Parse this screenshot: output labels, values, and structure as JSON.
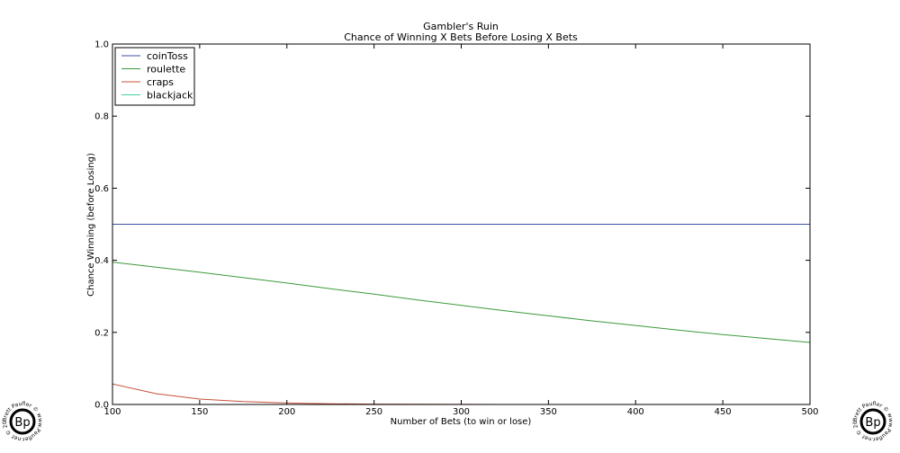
{
  "chart_data": {
    "type": "line",
    "title": "Gambler's Ruin",
    "subtitle": "Chance of Winning X Bets Before Losing X Bets",
    "x_label": "Number of Bets (to win or lose)",
    "y_label": "Chance Winning (before Losing)",
    "x": [
      100,
      125,
      150,
      175,
      200,
      225,
      250,
      275,
      300,
      325,
      350,
      375,
      400,
      425,
      450,
      475,
      500
    ],
    "series": [
      {
        "name": "coinToss",
        "color": "#3f51a8",
        "values": [
          0.5,
          0.5,
          0.5,
          0.5,
          0.5,
          0.5,
          0.5,
          0.5,
          0.5,
          0.5,
          0.5,
          0.5,
          0.5,
          0.5,
          0.5,
          0.5,
          0.5
        ]
      },
      {
        "name": "roulette",
        "color": "#3a9a3a",
        "values": [
          0.395,
          0.381,
          0.367,
          0.352,
          0.337,
          0.321,
          0.306,
          0.29,
          0.275,
          0.26,
          0.246,
          0.232,
          0.219,
          0.206,
          0.194,
          0.183,
          0.172
        ]
      },
      {
        "name": "craps",
        "color": "#c8503a",
        "values": [
          0.057,
          0.03,
          0.015,
          0.008,
          0.004,
          0.002,
          0.001,
          0.0005,
          0.0002,
          0.0001,
          0,
          0,
          0,
          0,
          0,
          0,
          0
        ]
      },
      {
        "name": "blackjack",
        "color": "#45cfa5",
        "values": [
          0,
          0,
          0,
          0,
          0,
          0,
          0,
          0,
          0,
          0,
          0,
          0,
          0,
          0,
          0,
          0,
          0
        ]
      }
    ],
    "xlim": [
      100,
      500
    ],
    "ylim": [
      0,
      1
    ],
    "xticks": [
      100,
      150,
      200,
      250,
      300,
      350,
      400,
      450,
      500
    ],
    "yticks": [
      {
        "value": 0,
        "label": "0.0"
      },
      0.2,
      0.4,
      0.6,
      0.8,
      {
        "value": 1,
        "label": "1.0"
      }
    ],
    "legend": "upper left",
    "grid": false
  },
  "watermark": {
    "logo": "Bp",
    "ring": "Brett Paufler © www.Paufler.net © 2014 ©"
  }
}
